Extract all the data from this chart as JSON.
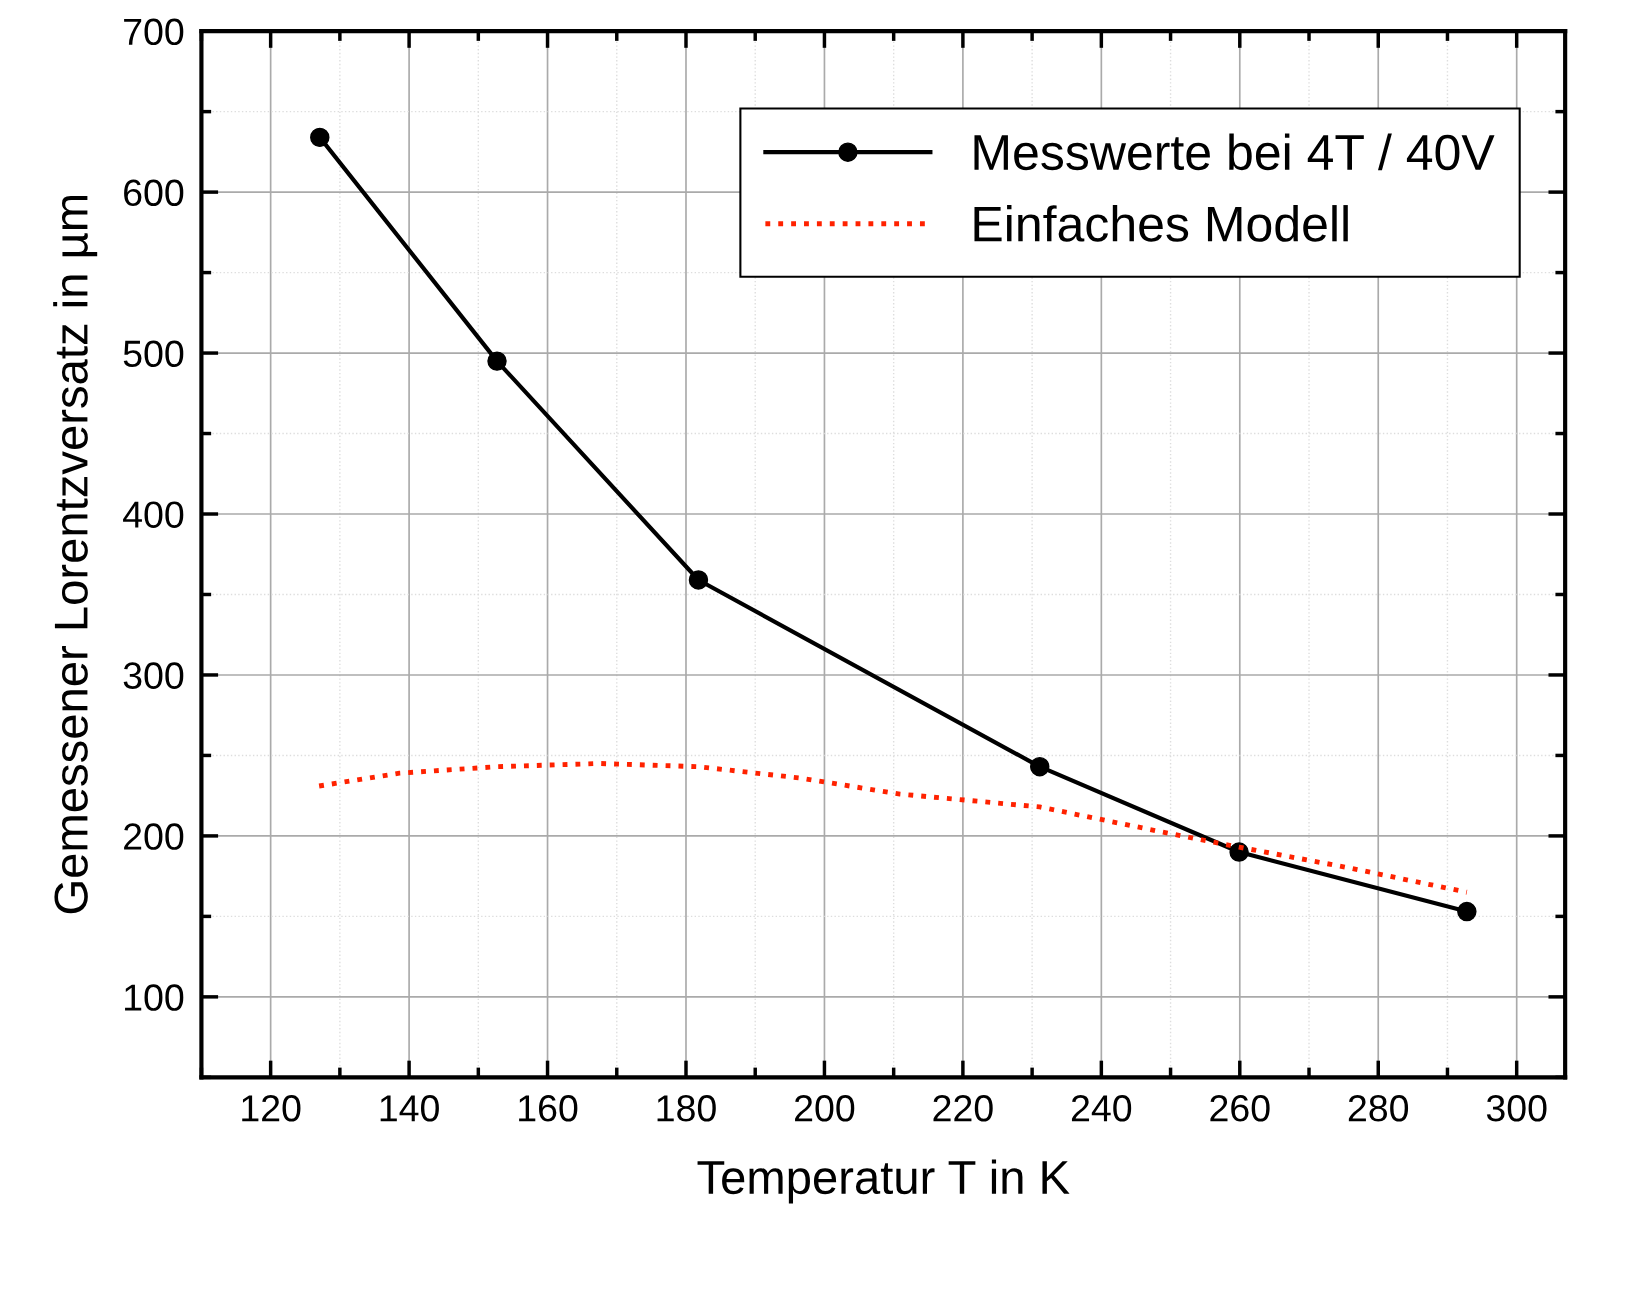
{
  "chart_data": {
    "type": "line",
    "xlabel": "Temperatur T in K",
    "ylabel": "Gemessener Lorentzversatz in µm",
    "xlim": [
      110,
      307
    ],
    "ylim": [
      50,
      700
    ],
    "xticks": [
      120,
      140,
      160,
      180,
      200,
      220,
      240,
      260,
      280,
      300
    ],
    "yticks": [
      100,
      200,
      300,
      400,
      500,
      600,
      700
    ],
    "grid": true,
    "legend": "top right",
    "series": [
      {
        "name": "Messwerte bei 4T / 40V",
        "color": "#000000",
        "marker": "circle",
        "line_style": "solid",
        "x": [
          127.1,
          152.7,
          181.8,
          231.1,
          259.9,
          292.8
        ],
        "values": [
          634,
          495,
          359,
          243,
          190,
          153
        ]
      },
      {
        "name": "Einfaches Modell",
        "color": "#ff2200",
        "marker": "none",
        "line_style": "dotted",
        "x": [
          127,
          138.6,
          152.7,
          167.5,
          181.8,
          196.4,
          210.9,
          231.1,
          247,
          259.9,
          276,
          292.8
        ],
        "values": [
          231,
          239,
          243,
          245,
          243,
          236,
          226,
          218,
          204,
          193,
          180,
          165
        ]
      }
    ]
  }
}
